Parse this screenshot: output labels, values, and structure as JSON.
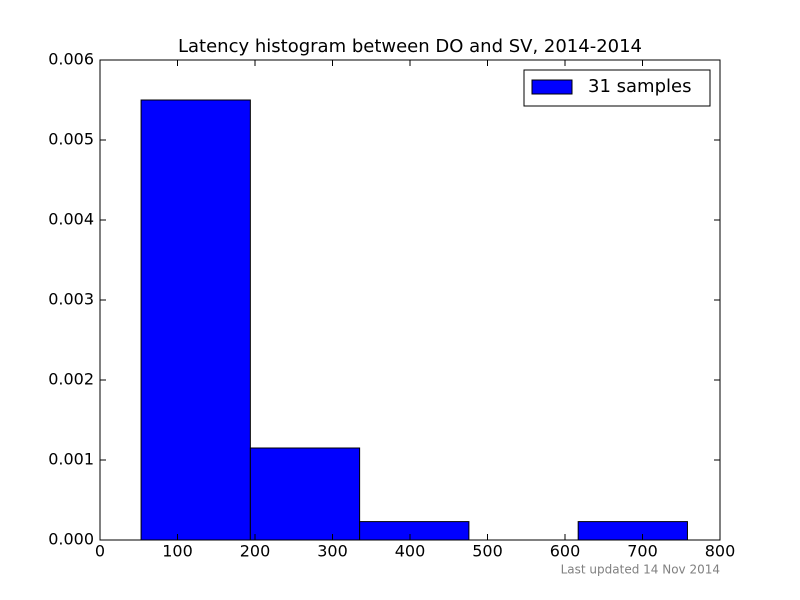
{
  "chart_data": {
    "type": "histogram",
    "title": "Latency histogram between DO and SV, 2014-2014",
    "bins": [
      53,
      194,
      335,
      476,
      617,
      758
    ],
    "series": [
      {
        "name": "31 samples",
        "color": "#0000ff",
        "values": [
          0.0055,
          0.00115,
          0.00023,
          0,
          0.00023
        ]
      }
    ],
    "xlim": [
      0,
      800
    ],
    "xticks": [
      0,
      100,
      200,
      300,
      400,
      500,
      600,
      700,
      800
    ],
    "ylim": [
      0,
      0.006
    ],
    "yticks": [
      {
        "value": 0,
        "label": "0.000"
      },
      0.001,
      0.002,
      0.003,
      0.004,
      0.005,
      0.006
    ],
    "legend": "upper right",
    "annotation": "Last updated 14 Nov 2014"
  }
}
